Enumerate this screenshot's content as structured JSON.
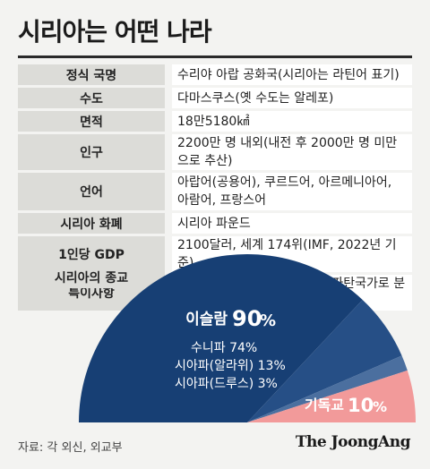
{
  "title": "시리아는 어떤 나라",
  "rows": [
    {
      "key": "정식 국명",
      "value": "수리야 아랍 공화국(시리아는 라틴어 표기)",
      "tall": false
    },
    {
      "key": "수도",
      "value": "다마스쿠스(옛 수도는 알레포)",
      "tall": false
    },
    {
      "key": "면적",
      "value": "18만5180㎢",
      "tall": false
    },
    {
      "key": "인구",
      "value": "2200만 명 내외(내전 후 2000만 명 미만으로 추산)",
      "tall": false
    },
    {
      "key": "언어",
      "value": "아랍어(공용어), 쿠르드어, 아르메니아어, 아람어, 프랑스어",
      "tall": true
    },
    {
      "key": "시리아 화폐",
      "value": "시리아 파운드",
      "tall": false
    },
    {
      "key": "1인당 GDP",
      "value": "2100달러, 세계 174위(IMF, 2022년 기준)",
      "tall": false
    },
    {
      "key": "특이사항",
      "value": "아프가니스탄·예멘 등과 함께 파탄국가로 분류",
      "tall": false
    }
  ],
  "religion_label": "시리아의 종교",
  "chart_data": {
    "type": "pie",
    "title": "시리아의 종교",
    "slices": [
      {
        "label": "이슬람",
        "value": 90,
        "value_label": "90",
        "unit": "%",
        "color": "#173f74"
      },
      {
        "label": "기독교",
        "value": 10,
        "value_label": "10",
        "unit": "%",
        "color": "#f29a9a"
      }
    ],
    "sub_slices": [
      {
        "label": "수니파",
        "value": 74,
        "text": "수니파 74%",
        "color": "#173f74"
      },
      {
        "label": "시아파(알라위)",
        "value": 13,
        "text": "시아파(알라위) 13%",
        "color": "#264f86"
      },
      {
        "label": "시아파(드루스)",
        "value": 3,
        "text": "시아파(드루스) 3%",
        "color": "#4b6f9f"
      }
    ],
    "range_deg": 180
  },
  "source": "자료: 각 외신, 외교부",
  "brand": "The JoongAng"
}
